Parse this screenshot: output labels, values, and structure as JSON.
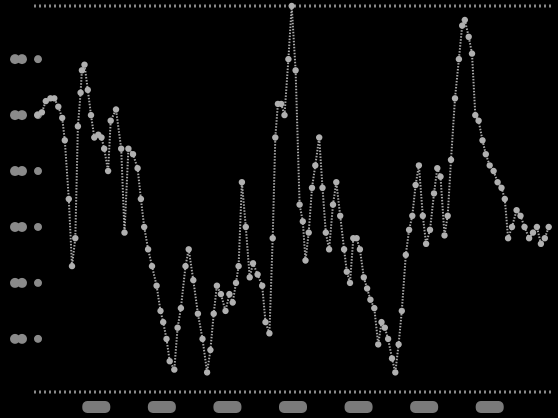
{
  "chart_data": {
    "type": "line",
    "title": "",
    "xlabel": "",
    "ylabel": "",
    "grid": false,
    "legend": "none",
    "colors": {
      "background": "#000000",
      "line": "#a8a8a8",
      "marker": "#b0b0b0",
      "axis": "#8a8a8a",
      "tick_label": "#7a7a7a"
    },
    "y_ticks": [
      {
        "value": 5,
        "label": ""
      },
      {
        "value": 4,
        "label": ""
      },
      {
        "value": 3,
        "label": ""
      },
      {
        "value": 2,
        "label": ""
      },
      {
        "value": 1,
        "label": ""
      },
      {
        "value": 0,
        "label": ""
      }
    ],
    "x_ticks": [
      {
        "value": 1,
        "label": ""
      },
      {
        "value": 2,
        "label": ""
      },
      {
        "value": 3,
        "label": ""
      },
      {
        "value": 4,
        "label": ""
      },
      {
        "value": 5,
        "label": ""
      },
      {
        "value": 6,
        "label": ""
      },
      {
        "value": 7,
        "label": ""
      }
    ],
    "xlim": [
      0.05,
      7.95
    ],
    "ylim": [
      -0.95,
      5.95
    ],
    "series": [
      {
        "x": [
          0.1,
          0.17,
          0.23,
          0.3,
          0.36,
          0.42,
          0.48,
          0.52,
          0.58,
          0.63,
          0.68,
          0.72,
          0.76,
          0.78,
          0.82,
          0.87,
          0.92,
          0.97,
          1.03,
          1.08,
          1.12,
          1.18,
          1.22,
          1.3,
          1.38,
          1.43,
          1.49,
          1.56,
          1.63,
          1.68,
          1.73,
          1.79,
          1.85,
          1.92,
          1.98,
          2.02,
          2.07,
          2.12,
          2.19,
          2.24,
          2.29,
          2.36,
          2.41,
          2.48,
          2.55,
          2.62,
          2.69,
          2.74,
          2.79,
          2.84,
          2.9,
          2.97,
          3.03,
          3.08,
          3.13,
          3.17,
          3.22,
          3.28,
          3.34,
          3.39,
          3.46,
          3.53,
          3.58,
          3.64,
          3.69,
          3.73,
          3.77,
          3.82,
          3.87,
          3.93,
          3.98,
          4.04,
          4.1,
          4.15,
          4.19,
          4.24,
          4.29,
          4.34,
          4.4,
          4.45,
          4.5,
          4.55,
          4.61,
          4.66,
          4.72,
          4.78,
          4.82,
          4.87,
          4.92,
          4.97,
          5.02,
          5.08,
          5.13,
          5.18,
          5.24,
          5.3,
          5.35,
          5.4,
          5.45,
          5.51,
          5.56,
          5.61,
          5.66,
          5.72,
          5.77,
          5.82,
          5.87,
          5.92,
          5.98,
          6.03,
          6.09,
          6.15,
          6.2,
          6.25,
          6.31,
          6.36,
          6.41,
          6.47,
          6.53,
          6.58,
          6.62,
          6.68,
          6.73,
          6.78,
          6.83,
          6.89,
          6.94,
          7.0,
          7.06,
          7.12,
          7.18,
          7.23,
          7.28,
          7.34,
          7.41,
          7.47,
          7.53,
          7.6,
          7.66,
          7.72,
          7.78,
          7.84,
          7.9
        ],
        "y": [
          4.0,
          4.05,
          4.25,
          4.3,
          4.3,
          4.15,
          3.95,
          3.55,
          2.5,
          1.3,
          1.8,
          3.8,
          4.4,
          4.8,
          4.9,
          4.45,
          4.0,
          3.6,
          3.65,
          3.6,
          3.4,
          3.0,
          3.9,
          4.1,
          3.4,
          1.9,
          3.4,
          3.3,
          3.05,
          2.5,
          2.0,
          1.6,
          1.3,
          0.95,
          0.5,
          0.3,
          0.0,
          -0.4,
          -0.55,
          0.2,
          0.55,
          1.3,
          1.6,
          1.05,
          0.45,
          0.0,
          -0.6,
          -0.2,
          0.45,
          0.95,
          0.8,
          0.5,
          0.8,
          0.65,
          1.0,
          1.3,
          2.8,
          2.0,
          1.1,
          1.35,
          1.15,
          0.95,
          0.3,
          0.1,
          1.8,
          3.6,
          4.2,
          4.2,
          4.0,
          5.0,
          5.95,
          4.8,
          2.4,
          2.1,
          1.4,
          1.9,
          2.7,
          3.1,
          3.6,
          2.7,
          1.9,
          1.6,
          2.4,
          2.8,
          2.2,
          1.6,
          1.2,
          1.0,
          1.8,
          1.8,
          1.6,
          1.1,
          0.9,
          0.7,
          0.55,
          -0.1,
          0.3,
          0.2,
          0.0,
          -0.35,
          -0.6,
          -0.1,
          0.5,
          1.5,
          1.95,
          2.2,
          2.75,
          3.1,
          2.2,
          1.7,
          1.95,
          2.6,
          3.05,
          2.9,
          1.85,
          2.2,
          3.2,
          4.3,
          5.0,
          5.6,
          5.7,
          5.4,
          5.1,
          4.0,
          3.9,
          3.55,
          3.3,
          3.1,
          3.0,
          2.8,
          2.7,
          2.5,
          1.8,
          2.0,
          2.3,
          2.2,
          2.0,
          1.8,
          1.9,
          2.0,
          1.7,
          1.8,
          2.0
        ]
      }
    ]
  }
}
